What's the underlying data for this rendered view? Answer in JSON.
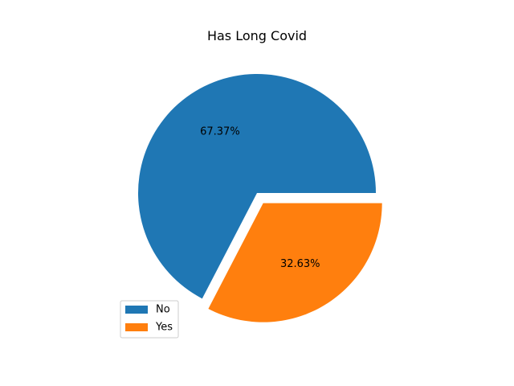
{
  "chart_data": {
    "type": "pie",
    "title": "Has Long Covid",
    "slices": [
      {
        "label": "No",
        "value": 67.37,
        "display": "67.37%",
        "color": "#1f77b4",
        "explode": 0
      },
      {
        "label": "Yes",
        "value": 32.63,
        "display": "32.63%",
        "color": "#ff7f0e",
        "explode": 0.1
      }
    ],
    "legend": {
      "position": "lower-left"
    }
  }
}
